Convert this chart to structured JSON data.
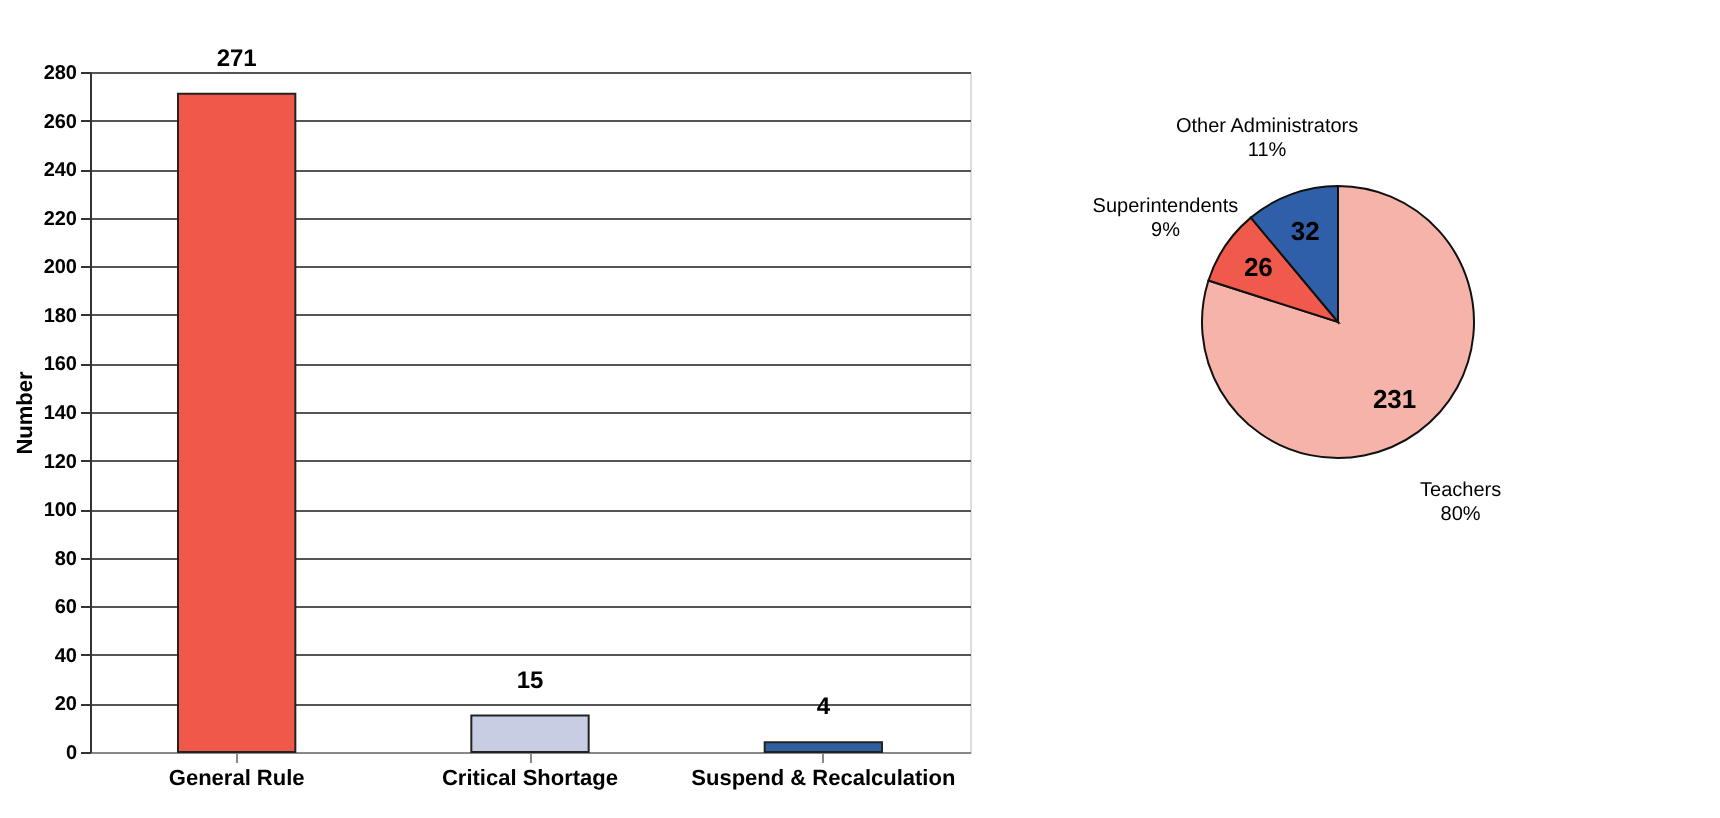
{
  "chart_data": [
    {
      "type": "bar",
      "ylabel": "Number",
      "categories": [
        "General Rule",
        "Critical Shortage",
        "Suspend & Recalculation"
      ],
      "values": [
        271,
        15,
        4
      ],
      "colors": [
        "#f0584a",
        "#c9cde3",
        "#2f5f9e"
      ],
      "ylim": [
        0,
        280
      ],
      "yticks": [
        0,
        20,
        40,
        60,
        80,
        100,
        120,
        140,
        160,
        180,
        200,
        220,
        240,
        260,
        280
      ],
      "grid": "y",
      "data_labels": true
    },
    {
      "type": "pie",
      "categories": [
        "Teachers",
        "Superintendents",
        "Other Administrators"
      ],
      "values": [
        231,
        26,
        32
      ],
      "colors": [
        "#f5b3a9",
        "#ef5a4c",
        "#2f5fa8"
      ],
      "data_labels": true,
      "annotations": [
        "80%",
        "9%",
        "11%"
      ]
    }
  ]
}
